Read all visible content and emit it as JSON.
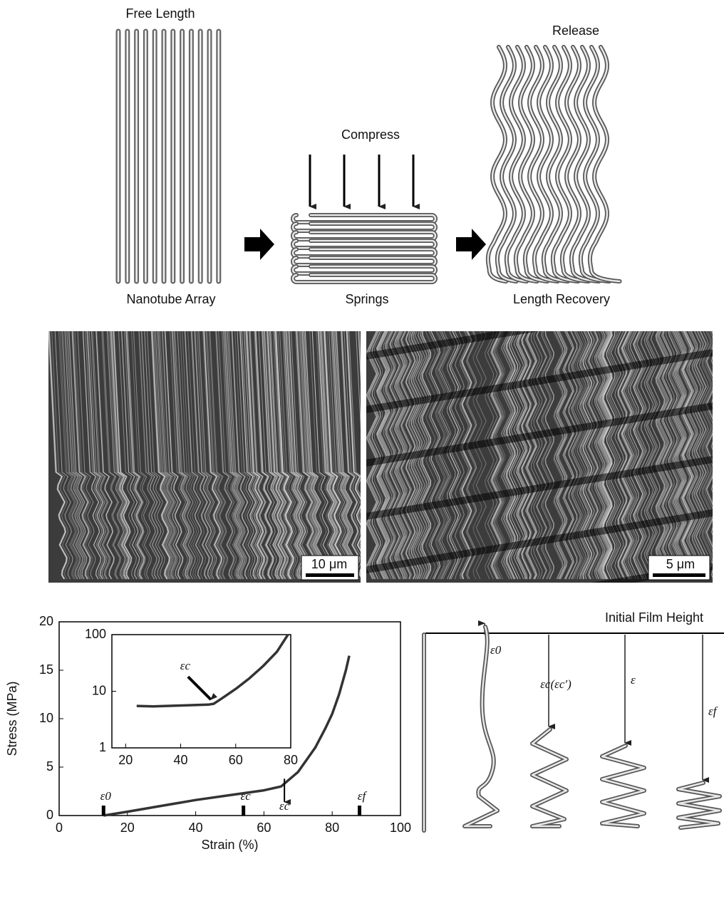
{
  "diagram": {
    "free_length": "Free Length",
    "nanotube_array": "Nanotube Array",
    "compress": "Compress",
    "springs": "Springs",
    "release": "Release",
    "length_recovery": "Length Recovery"
  },
  "micrographs": [
    {
      "scale_bar": "10 μm"
    },
    {
      "scale_bar": "5 μm"
    }
  ],
  "schematic": {
    "title": "Initial Film Height",
    "labels": [
      "ε0",
      "εc(εc′)",
      "ε",
      "εf"
    ]
  },
  "chart_data": [
    {
      "type": "line",
      "xlabel": "Strain (%)",
      "ylabel": "Stress (MPa)",
      "x": [
        13,
        20,
        30,
        40,
        50,
        60,
        65,
        70,
        75,
        78,
        80,
        82,
        84,
        85
      ],
      "series": [
        {
          "color": "#333333",
          "values": [
            0,
            0.4,
            1.0,
            1.6,
            2.1,
            2.6,
            3.0,
            4.5,
            7,
            9,
            10.5,
            12.5,
            15,
            16.5
          ]
        }
      ],
      "xlim": [
        0,
        100
      ],
      "ylim": [
        0,
        20
      ],
      "xticks": [
        0,
        20,
        40,
        60,
        80,
        100
      ],
      "yticks": [
        0,
        5,
        10,
        15,
        20
      ],
      "annotations": [
        {
          "text": "ε0",
          "x": 13
        },
        {
          "text": "εc",
          "x": 54
        },
        {
          "text": "εf",
          "x": 88
        }
      ],
      "arrow_annotation": {
        "text": "εc",
        "x": 66
      }
    },
    {
      "type": "line",
      "log_y": true,
      "x": [
        24,
        30,
        35,
        40,
        45,
        50,
        52,
        55,
        60,
        65,
        70,
        75,
        79
      ],
      "series": [
        {
          "color": "#333333",
          "values": [
            5.5,
            5.4,
            5.5,
            5.6,
            5.7,
            5.8,
            6,
            7.5,
            11,
            17,
            28,
            50,
            100
          ]
        }
      ],
      "xlim": [
        15,
        80
      ],
      "ylim": [
        1,
        100
      ],
      "xticks": [
        20,
        40,
        60,
        80
      ],
      "yticks": [
        1,
        10,
        100
      ],
      "annotations": [
        {
          "text": "εc",
          "x": 52
        }
      ]
    }
  ]
}
